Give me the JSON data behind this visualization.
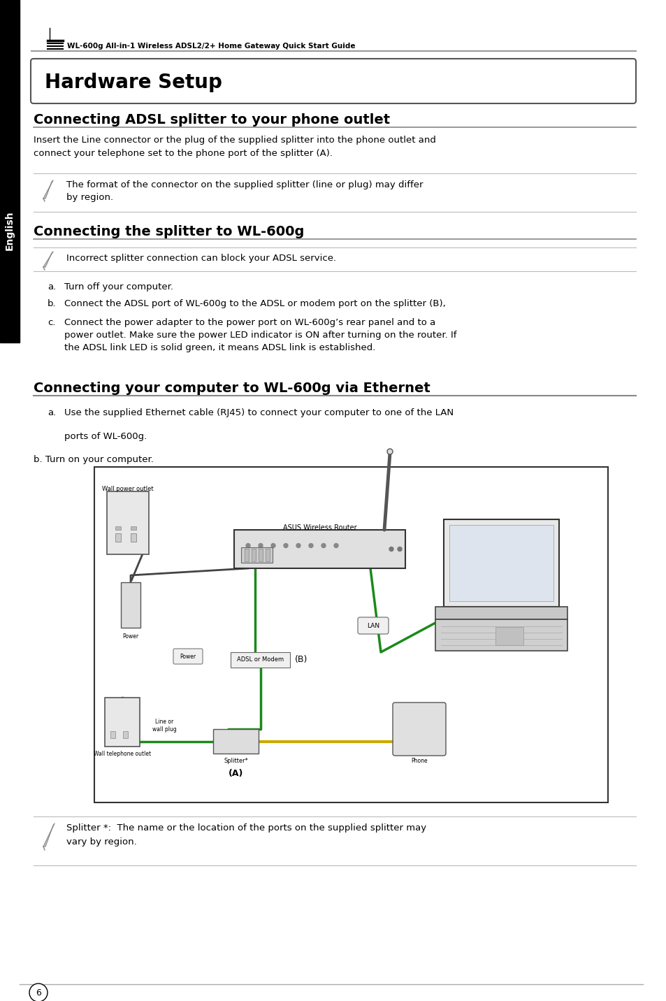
{
  "bg_color": "#ffffff",
  "sidebar_color": "#000000",
  "sidebar_text": "English",
  "header_text": "WL-600g All-in-1 Wireless ADSL2/2+ Home Gateway Quick Start Guide",
  "title_box_text": "Hardware Setup",
  "section1_title": "Connecting ADSL splitter to your phone outlet",
  "section1_body": "Insert the Line connector or the plug of the supplied splitter into the phone outlet and\nconnect your telephone set to the phone port of the splitter (A).",
  "note1_text": "The format of the connector on the supplied splitter (line or plug) may differ\nby region.",
  "section2_title": "Connecting the splitter to WL-600g",
  "note2_text": "Incorrect splitter connection can block your ADSL service.",
  "section2_items": [
    "Turn off your computer.",
    "Connect the ADSL port of WL-600g to the ADSL or modem port on the splitter (B),",
    "Connect the power adapter to the power port on WL-600g’s rear panel and to a\npower outlet. Make sure the power LED indicator is ON after turning on the router. If\nthe ADSL link LED is solid green, it means ADSL link is established."
  ],
  "section3_title": "Connecting your computer to WL-600g via Ethernet",
  "section3_item_a_line1": "Use the supplied Ethernet cable (RJ45) to connect your computer to one of the LAN",
  "section3_item_a_line2": "ports of WL-600g.",
  "section3_item_b": "b. Turn on your computer.",
  "note3_text": "Splitter *:  The name or the location of the ports on the supplied splitter may\nvary by region.",
  "footer_number": "6"
}
